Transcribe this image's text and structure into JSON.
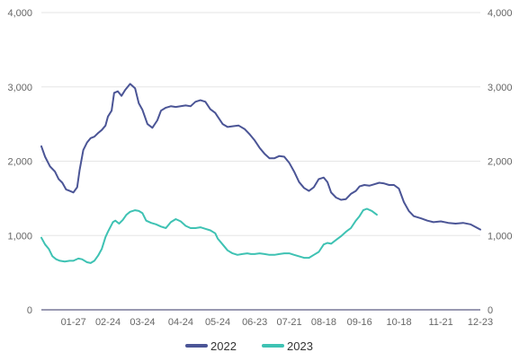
{
  "chart_data": {
    "type": "line",
    "title": "",
    "xlabel": "",
    "ylabel": "",
    "ylim": [
      0,
      4000
    ],
    "y_ticks": [
      "0",
      "1,000",
      "2,000",
      "3,000",
      "4,000"
    ],
    "x_ticks": [
      "01-27",
      "02-24",
      "03-24",
      "04-24",
      "05-24",
      "06-23",
      "07-21",
      "08-18",
      "09-16",
      "10-18",
      "11-21",
      "12-23"
    ],
    "grid": true,
    "dual_y_axis": true,
    "legend_position": "bottom",
    "series": [
      {
        "name": "2022",
        "color": "#4b5596",
        "points": [
          [
            "01-01",
            2200
          ],
          [
            "01-04",
            2060
          ],
          [
            "01-08",
            1930
          ],
          [
            "01-12",
            1860
          ],
          [
            "01-15",
            1760
          ],
          [
            "01-18",
            1710
          ],
          [
            "01-21",
            1620
          ],
          [
            "01-24",
            1600
          ],
          [
            "01-27",
            1580
          ],
          [
            "01-30",
            1650
          ],
          [
            "02-01",
            1880
          ],
          [
            "02-04",
            2150
          ],
          [
            "02-07",
            2250
          ],
          [
            "02-10",
            2310
          ],
          [
            "02-13",
            2330
          ],
          [
            "02-16",
            2380
          ],
          [
            "02-19",
            2420
          ],
          [
            "02-22",
            2480
          ],
          [
            "02-24",
            2600
          ],
          [
            "02-27",
            2680
          ],
          [
            "03-01",
            2920
          ],
          [
            "03-04",
            2940
          ],
          [
            "03-07",
            2880
          ],
          [
            "03-10",
            2960
          ],
          [
            "03-14",
            3040
          ],
          [
            "03-18",
            2980
          ],
          [
            "03-21",
            2780
          ],
          [
            "03-24",
            2690
          ],
          [
            "03-28",
            2500
          ],
          [
            "04-01",
            2450
          ],
          [
            "04-05",
            2550
          ],
          [
            "04-08",
            2680
          ],
          [
            "04-12",
            2720
          ],
          [
            "04-16",
            2740
          ],
          [
            "04-20",
            2730
          ],
          [
            "04-24",
            2740
          ],
          [
            "04-28",
            2750
          ],
          [
            "05-02",
            2740
          ],
          [
            "05-06",
            2800
          ],
          [
            "05-10",
            2820
          ],
          [
            "05-14",
            2800
          ],
          [
            "05-18",
            2700
          ],
          [
            "05-22",
            2650
          ],
          [
            "05-24",
            2600
          ],
          [
            "05-28",
            2500
          ],
          [
            "06-01",
            2460
          ],
          [
            "06-05",
            2470
          ],
          [
            "06-10",
            2480
          ],
          [
            "06-15",
            2430
          ],
          [
            "06-19",
            2360
          ],
          [
            "06-23",
            2280
          ],
          [
            "06-27",
            2180
          ],
          [
            "07-01",
            2100
          ],
          [
            "07-05",
            2040
          ],
          [
            "07-09",
            2040
          ],
          [
            "07-13",
            2070
          ],
          [
            "07-17",
            2060
          ],
          [
            "07-21",
            1980
          ],
          [
            "07-25",
            1860
          ],
          [
            "07-29",
            1720
          ],
          [
            "08-02",
            1640
          ],
          [
            "08-06",
            1600
          ],
          [
            "08-10",
            1650
          ],
          [
            "08-14",
            1760
          ],
          [
            "08-18",
            1780
          ],
          [
            "08-21",
            1720
          ],
          [
            "08-24",
            1580
          ],
          [
            "08-28",
            1510
          ],
          [
            "09-01",
            1480
          ],
          [
            "09-05",
            1490
          ],
          [
            "09-09",
            1560
          ],
          [
            "09-13",
            1600
          ],
          [
            "09-16",
            1660
          ],
          [
            "09-20",
            1680
          ],
          [
            "09-24",
            1670
          ],
          [
            "09-28",
            1690
          ],
          [
            "10-02",
            1710
          ],
          [
            "10-06",
            1700
          ],
          [
            "10-10",
            1680
          ],
          [
            "10-14",
            1680
          ],
          [
            "10-18",
            1630
          ],
          [
            "10-22",
            1450
          ],
          [
            "10-26",
            1330
          ],
          [
            "10-30",
            1260
          ],
          [
            "11-05",
            1230
          ],
          [
            "11-10",
            1200
          ],
          [
            "11-15",
            1180
          ],
          [
            "11-21",
            1190
          ],
          [
            "11-27",
            1170
          ],
          [
            "12-03",
            1160
          ],
          [
            "12-09",
            1170
          ],
          [
            "12-15",
            1150
          ],
          [
            "12-23",
            1080
          ]
        ]
      },
      {
        "name": "2023",
        "color": "#3ec2b3",
        "points": [
          [
            "01-01",
            970
          ],
          [
            "01-04",
            880
          ],
          [
            "01-07",
            820
          ],
          [
            "01-10",
            720
          ],
          [
            "01-13",
            680
          ],
          [
            "01-16",
            660
          ],
          [
            "01-20",
            650
          ],
          [
            "01-24",
            660
          ],
          [
            "01-27",
            660
          ],
          [
            "01-31",
            690
          ],
          [
            "02-03",
            680
          ],
          [
            "02-07",
            640
          ],
          [
            "02-10",
            630
          ],
          [
            "02-13",
            660
          ],
          [
            "02-16",
            730
          ],
          [
            "02-19",
            820
          ],
          [
            "02-22",
            980
          ],
          [
            "02-24",
            1050
          ],
          [
            "02-28",
            1180
          ],
          [
            "03-02",
            1200
          ],
          [
            "03-05",
            1160
          ],
          [
            "03-08",
            1210
          ],
          [
            "03-11",
            1280
          ],
          [
            "03-14",
            1320
          ],
          [
            "03-18",
            1340
          ],
          [
            "03-21",
            1330
          ],
          [
            "03-24",
            1300
          ],
          [
            "03-27",
            1200
          ],
          [
            "03-31",
            1170
          ],
          [
            "04-04",
            1150
          ],
          [
            "04-08",
            1120
          ],
          [
            "04-12",
            1100
          ],
          [
            "04-16",
            1180
          ],
          [
            "04-20",
            1220
          ],
          [
            "04-24",
            1190
          ],
          [
            "04-28",
            1130
          ],
          [
            "05-02",
            1100
          ],
          [
            "05-06",
            1100
          ],
          [
            "05-10",
            1110
          ],
          [
            "05-14",
            1090
          ],
          [
            "05-18",
            1070
          ],
          [
            "05-22",
            1030
          ],
          [
            "05-24",
            960
          ],
          [
            "05-28",
            880
          ],
          [
            "06-01",
            800
          ],
          [
            "06-05",
            760
          ],
          [
            "06-09",
            740
          ],
          [
            "06-13",
            750
          ],
          [
            "06-17",
            760
          ],
          [
            "06-20",
            750
          ],
          [
            "06-23",
            750
          ],
          [
            "06-27",
            760
          ],
          [
            "07-01",
            750
          ],
          [
            "07-05",
            740
          ],
          [
            "07-09",
            740
          ],
          [
            "07-13",
            750
          ],
          [
            "07-17",
            760
          ],
          [
            "07-21",
            760
          ],
          [
            "07-25",
            740
          ],
          [
            "07-29",
            720
          ],
          [
            "08-02",
            700
          ],
          [
            "08-06",
            700
          ],
          [
            "08-10",
            740
          ],
          [
            "08-14",
            780
          ],
          [
            "08-18",
            880
          ],
          [
            "08-21",
            900
          ],
          [
            "08-24",
            890
          ],
          [
            "08-28",
            940
          ],
          [
            "09-01",
            990
          ],
          [
            "09-05",
            1050
          ],
          [
            "09-09",
            1100
          ],
          [
            "09-13",
            1200
          ],
          [
            "09-16",
            1260
          ],
          [
            "09-19",
            1340
          ],
          [
            "09-22",
            1360
          ],
          [
            "09-26",
            1330
          ],
          [
            "09-30",
            1280
          ]
        ]
      }
    ]
  }
}
